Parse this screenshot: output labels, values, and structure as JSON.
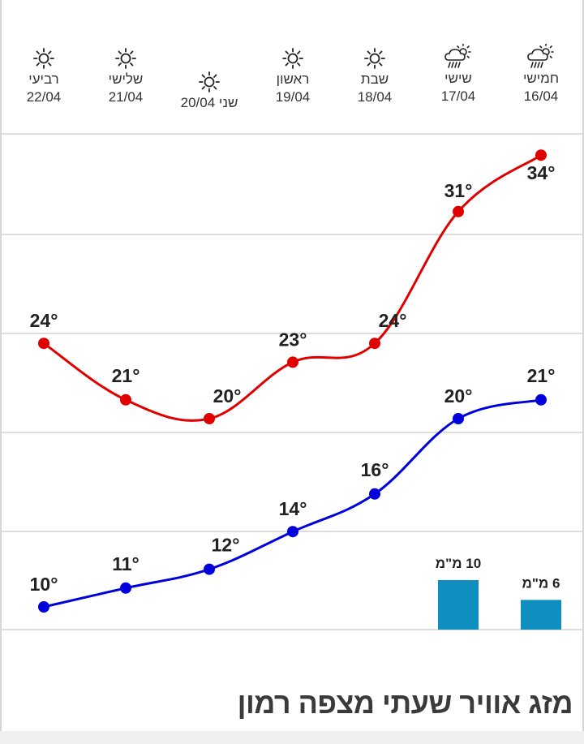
{
  "page_title": "מזג אוויר שעתי מצפה רמון",
  "colors": {
    "max_line": "#e00000",
    "min_line": "#0000dd",
    "rain_bar": "#0e8fc0",
    "grid": "#dddddd"
  },
  "days": [
    {
      "name": "חמישי",
      "date": "16/04",
      "icon": "rain-sun-icon"
    },
    {
      "name": "שישי",
      "date": "17/04",
      "icon": "rain-sun-icon"
    },
    {
      "name": "שבת",
      "date": "18/04",
      "icon": "sun-icon"
    },
    {
      "name": "ראשון",
      "date": "19/04",
      "icon": "sun-icon"
    },
    {
      "name": "שני",
      "date": "20/04",
      "icon": "sun-icon"
    },
    {
      "name": "שלישי",
      "date": "21/04",
      "icon": "sun-icon"
    },
    {
      "name": "רביעי",
      "date": "22/04",
      "icon": "sun-icon"
    }
  ],
  "chart_data": {
    "type": "line",
    "categories": [
      "16/04",
      "17/04",
      "18/04",
      "19/04",
      "20/04",
      "21/04",
      "22/04"
    ],
    "series": [
      {
        "name": "",
        "values": [
          34,
          31,
          24,
          23,
          20,
          21,
          24
        ],
        "labels": [
          "34°",
          "31°",
          "24°",
          "23°",
          "20°",
          "21°",
          "24°"
        ]
      },
      {
        "name": "",
        "values": [
          21,
          20,
          16,
          14,
          12,
          11,
          10
        ],
        "labels": [
          "21°",
          "20°",
          "16°",
          "14°",
          "12°",
          "11°",
          "10°"
        ]
      }
    ],
    "rain": {
      "values": [
        6,
        10,
        null,
        null,
        null,
        null,
        null
      ],
      "labels": [
        "6 מ\"מ",
        "10 מ\"מ",
        "",
        "",
        "",
        "",
        ""
      ]
    },
    "title": "",
    "xlabel": "",
    "ylabel": "",
    "grid": true
  }
}
